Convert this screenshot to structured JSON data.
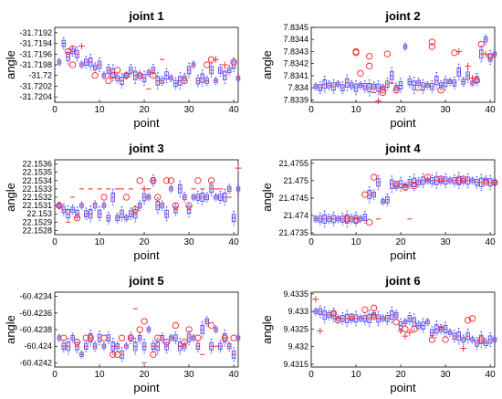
{
  "figure": {
    "color_box": "#4a4aff",
    "color_outlier": "#ff2020"
  },
  "chart_data": [
    {
      "type": "box",
      "title": "joint 1",
      "xlabel": "point",
      "ylabel": "angle",
      "xlim": [
        0,
        41
      ],
      "ylim": [
        -31.7205,
        -31.7191
      ],
      "x_ticks": [
        "0",
        "10",
        "20",
        "30",
        "40"
      ],
      "y_ticks": [
        "-31.7192",
        "-31.7194",
        "-31.7196",
        "-31.7198",
        "-31.72",
        "-31.7202",
        "-31.7204"
      ],
      "medians": [
        -31.71975,
        -31.7194,
        -31.71965,
        -31.71955,
        -31.7196,
        -31.7198,
        -31.71975,
        -31.71975,
        -31.71985,
        -31.7198,
        -31.72,
        -31.7199,
        -31.71995,
        -31.72005,
        -31.7201,
        -31.72,
        -31.7199,
        -31.72,
        -31.72,
        -31.72005,
        -31.71995,
        -31.7199,
        -31.7201,
        -31.7201,
        -31.72,
        -31.72005,
        -31.72015,
        -31.7201,
        -31.72005,
        -31.7199,
        -31.7198,
        -31.7201,
        -31.72005,
        -31.7201,
        -31.7199,
        -31.7201,
        -31.7199,
        -31.72,
        -31.7199,
        -31.7198,
        -31.72005
      ],
      "outliers": [
        {
          "x": 3,
          "y": -31.71955,
          "marker": "o"
        },
        {
          "x": 4,
          "y": -31.7195,
          "marker": "o"
        },
        {
          "x": 4,
          "y": -31.7198,
          "marker": "o"
        },
        {
          "x": 6,
          "y": -31.71945,
          "marker": "+"
        },
        {
          "x": 9,
          "y": -31.72,
          "marker": "o"
        },
        {
          "x": 12,
          "y": -31.7201,
          "marker": "o"
        },
        {
          "x": 13,
          "y": -31.72,
          "marker": "o"
        },
        {
          "x": 14,
          "y": -31.7199,
          "marker": "o"
        },
        {
          "x": 16,
          "y": -31.72,
          "marker": "o"
        },
        {
          "x": 19,
          "y": -31.72,
          "marker": "o"
        },
        {
          "x": 21,
          "y": -31.72025,
          "marker": "-"
        },
        {
          "x": 22,
          "y": -31.72,
          "marker": "o"
        },
        {
          "x": 24,
          "y": -31.7197,
          "marker": "-"
        },
        {
          "x": 29,
          "y": -31.7201,
          "marker": "o"
        },
        {
          "x": 34,
          "y": -31.7198,
          "marker": "o"
        },
        {
          "x": 35,
          "y": -31.7197,
          "marker": "o"
        },
        {
          "x": 36,
          "y": -31.7197,
          "marker": "+"
        },
        {
          "x": 38,
          "y": -31.7198,
          "marker": "+"
        },
        {
          "x": 40,
          "y": -31.71975,
          "marker": "o"
        }
      ]
    },
    {
      "type": "box",
      "title": "joint 2",
      "xlabel": "point",
      "ylabel": "angle",
      "xlim": [
        0,
        41
      ],
      "ylim": [
        7.83388,
        7.8345
      ],
      "x_ticks": [
        "0",
        "10",
        "20",
        "30",
        "40"
      ],
      "y_ticks": [
        "7.8345",
        "7.8344",
        "7.8343",
        "7.8342",
        "7.8341",
        "7.834",
        "7.8339"
      ],
      "medians": [
        7.83401,
        7.834,
        7.83403,
        7.83402,
        7.83401,
        7.83403,
        7.834,
        7.83404,
        7.83402,
        7.834,
        7.83402,
        7.83401,
        7.834,
        7.83401,
        7.834,
        7.834,
        7.83403,
        7.8341,
        7.834,
        7.83402,
        7.83434,
        7.83405,
        7.83402,
        7.83404,
        7.83401,
        7.83402,
        7.83401,
        7.83406,
        7.83402,
        7.83404,
        7.83405,
        7.83404,
        7.83413,
        7.83405,
        7.8341,
        7.83404,
        7.83407,
        7.83428,
        7.8344,
        7.83425,
        7.83428
      ],
      "outliers": [
        {
          "x": 10,
          "y": 7.8343,
          "marker": "o"
        },
        {
          "x": 10,
          "y": 7.83429,
          "marker": "o"
        },
        {
          "x": 11,
          "y": 7.83412,
          "marker": "o"
        },
        {
          "x": 13,
          "y": 7.83426,
          "marker": "o"
        },
        {
          "x": 13,
          "y": 7.83418,
          "marker": "o"
        },
        {
          "x": 14,
          "y": 7.83396,
          "marker": "-"
        },
        {
          "x": 15,
          "y": 7.83389,
          "marker": "+"
        },
        {
          "x": 16,
          "y": 7.83398,
          "marker": "o"
        },
        {
          "x": 16,
          "y": 7.83396,
          "marker": "o"
        },
        {
          "x": 17,
          "y": 7.83428,
          "marker": "o"
        },
        {
          "x": 18,
          "y": 7.83404,
          "marker": "-"
        },
        {
          "x": 19,
          "y": 7.83398,
          "marker": "o"
        },
        {
          "x": 24,
          "y": 7.83398,
          "marker": "-"
        },
        {
          "x": 27,
          "y": 7.83438,
          "marker": "o"
        },
        {
          "x": 27,
          "y": 7.83434,
          "marker": "o"
        },
        {
          "x": 29,
          "y": 7.83398,
          "marker": "o"
        },
        {
          "x": 32,
          "y": 7.83429,
          "marker": "o"
        },
        {
          "x": 33,
          "y": 7.8343,
          "marker": "+"
        },
        {
          "x": 35,
          "y": 7.83418,
          "marker": "+"
        },
        {
          "x": 36,
          "y": 7.83408,
          "marker": "+"
        },
        {
          "x": 37,
          "y": 7.83406,
          "marker": "o"
        },
        {
          "x": 38,
          "y": 7.83436,
          "marker": "o"
        },
        {
          "x": 39,
          "y": 7.83428,
          "marker": "+"
        },
        {
          "x": 40,
          "y": 7.83426,
          "marker": "o"
        }
      ]
    },
    {
      "type": "box",
      "title": "joint 3",
      "xlabel": "point",
      "ylabel": "angle",
      "xlim": [
        0,
        41
      ],
      "ylim": [
        22.15275,
        22.15365
      ],
      "x_ticks": [
        "0",
        "10",
        "20",
        "30",
        "40"
      ],
      "y_ticks": [
        "22.1536",
        "22.1535",
        "22.1534",
        "22.1533",
        "22.1532",
        "22.1531",
        "22.153",
        "22.1529",
        "22.1528"
      ],
      "medians": [
        22.1531,
        22.15305,
        22.153,
        22.15305,
        22.153,
        22.1531,
        22.153,
        22.153,
        22.1531,
        22.153,
        22.1531,
        22.15295,
        22.1532,
        22.15295,
        22.153,
        22.15295,
        22.153,
        22.153,
        22.1531,
        22.1532,
        22.1532,
        22.1534,
        22.1531,
        22.1531,
        22.153,
        22.1533,
        22.15305,
        22.1533,
        22.1532,
        22.15305,
        22.1532,
        22.1532,
        22.1532,
        22.1532,
        22.1533,
        22.1532,
        22.1532,
        22.1532,
        22.1533,
        22.15295,
        22.1533
      ],
      "outliers": [
        {
          "x": 1,
          "y": 22.1531,
          "marker": "o"
        },
        {
          "x": 3,
          "y": 22.1529,
          "marker": "-"
        },
        {
          "x": 4,
          "y": 22.1532,
          "marker": "-"
        },
        {
          "x": 5,
          "y": 22.15295,
          "marker": "o"
        },
        {
          "x": 6,
          "y": 22.1533,
          "marker": "-"
        },
        {
          "x": 8,
          "y": 22.1533,
          "marker": "-"
        },
        {
          "x": 10,
          "y": 22.1533,
          "marker": "-"
        },
        {
          "x": 11,
          "y": 22.1532,
          "marker": "o"
        },
        {
          "x": 12,
          "y": 22.1533,
          "marker": "-"
        },
        {
          "x": 14,
          "y": 22.1533,
          "marker": "-"
        },
        {
          "x": 15,
          "y": 22.1533,
          "marker": "-"
        },
        {
          "x": 16,
          "y": 22.1532,
          "marker": "o"
        },
        {
          "x": 17,
          "y": 22.1533,
          "marker": "-"
        },
        {
          "x": 18,
          "y": 22.15305,
          "marker": "o"
        },
        {
          "x": 19,
          "y": 22.1534,
          "marker": "o"
        },
        {
          "x": 20,
          "y": 22.1533,
          "marker": "+"
        },
        {
          "x": 21,
          "y": 22.1533,
          "marker": "-"
        },
        {
          "x": 22,
          "y": 22.1534,
          "marker": "o"
        },
        {
          "x": 23,
          "y": 22.1532,
          "marker": "o"
        },
        {
          "x": 25,
          "y": 22.1534,
          "marker": "o"
        },
        {
          "x": 26,
          "y": 22.1534,
          "marker": "o"
        },
        {
          "x": 27,
          "y": 22.1531,
          "marker": "o"
        },
        {
          "x": 29,
          "y": 22.1532,
          "marker": "-"
        },
        {
          "x": 30,
          "y": 22.1531,
          "marker": "o"
        },
        {
          "x": 31,
          "y": 22.1533,
          "marker": "-"
        },
        {
          "x": 32,
          "y": 22.1534,
          "marker": "o"
        },
        {
          "x": 33,
          "y": 22.1533,
          "marker": "-"
        },
        {
          "x": 35,
          "y": 22.1534,
          "marker": "o"
        },
        {
          "x": 36,
          "y": 22.1533,
          "marker": "-"
        },
        {
          "x": 37,
          "y": 22.1533,
          "marker": "-"
        },
        {
          "x": 39,
          "y": 22.1532,
          "marker": "-"
        },
        {
          "x": 41,
          "y": 22.15355,
          "marker": "+"
        }
      ]
    },
    {
      "type": "box",
      "title": "joint 4",
      "xlabel": "point",
      "ylabel": "angle",
      "xlim": [
        0,
        41
      ],
      "ylim": [
        21.47345,
        21.4756
      ],
      "x_ticks": [
        "0",
        "10",
        "20",
        "30",
        "40"
      ],
      "y_ticks": [
        "21.4755",
        "21.475",
        "21.4745",
        "21.474",
        "21.4735"
      ],
      "medians": [
        21.4739,
        21.4739,
        21.4739,
        21.4739,
        21.4739,
        21.4739,
        21.4739,
        21.4739,
        21.4739,
        21.4739,
        21.4739,
        21.47395,
        21.4746,
        21.4746,
        21.47495,
        21.4744,
        21.47445,
        21.4749,
        21.47485,
        21.4749,
        21.47485,
        21.47495,
        21.47495,
        21.47495,
        21.475,
        21.475,
        21.475,
        21.475,
        21.475,
        21.475,
        21.475,
        21.475,
        21.475,
        21.475,
        21.475,
        21.475,
        21.47495,
        21.47495,
        21.475,
        21.47495,
        21.47495
      ],
      "outliers": [
        {
          "x": 8,
          "y": 21.4739,
          "marker": "o"
        },
        {
          "x": 10,
          "y": 21.47385,
          "marker": "o"
        },
        {
          "x": 12,
          "y": 21.4746,
          "marker": "o"
        },
        {
          "x": 13,
          "y": 21.4738,
          "marker": "o"
        },
        {
          "x": 14,
          "y": 21.4751,
          "marker": "o"
        },
        {
          "x": 15,
          "y": 21.4739,
          "marker": "-"
        },
        {
          "x": 19,
          "y": 21.4749,
          "marker": "o"
        },
        {
          "x": 21,
          "y": 21.4748,
          "marker": "o"
        },
        {
          "x": 22,
          "y": 21.4739,
          "marker": "-"
        },
        {
          "x": 23,
          "y": 21.47485,
          "marker": "o"
        },
        {
          "x": 26,
          "y": 21.4751,
          "marker": "o"
        },
        {
          "x": 29,
          "y": 21.47505,
          "marker": "o"
        },
        {
          "x": 33,
          "y": 21.475,
          "marker": "o"
        },
        {
          "x": 34,
          "y": 21.47505,
          "marker": "o"
        },
        {
          "x": 39,
          "y": 21.47495,
          "marker": "o"
        },
        {
          "x": 41,
          "y": 21.47495,
          "marker": "o"
        }
      ]
    },
    {
      "type": "box",
      "title": "joint 5",
      "xlabel": "point",
      "ylabel": "angle",
      "xlim": [
        0,
        41
      ],
      "ylim": [
        -60.42425,
        -60.42335
      ],
      "x_ticks": [
        "0",
        "10",
        "20",
        "30",
        "40"
      ],
      "y_ticks": [
        "-60.4234",
        "-60.4236",
        "-60.4238",
        "-60.424",
        "-60.4242"
      ],
      "medians": [
        -60.4239,
        -60.424,
        -60.424,
        -60.4239,
        -60.424,
        -60.4241,
        -60.424,
        -60.4239,
        -60.424,
        -60.4239,
        -60.424,
        -60.4239,
        -60.424,
        -60.424,
        -60.4241,
        -60.424,
        -60.4239,
        -60.424,
        -60.4239,
        -60.424,
        -60.4238,
        -60.424,
        -60.424,
        -60.4239,
        -60.424,
        -60.4239,
        -60.4239,
        -60.424,
        -60.424,
        -60.4239,
        -60.4239,
        -60.424,
        -60.4238,
        -60.4237,
        -60.424,
        -60.4238,
        -60.424,
        -60.4239,
        -60.424,
        -60.4241,
        -60.4239
      ],
      "outliers": [
        {
          "x": 2,
          "y": -60.4239,
          "marker": "o"
        },
        {
          "x": 5,
          "y": -60.42395,
          "marker": "o"
        },
        {
          "x": 7,
          "y": -60.4239,
          "marker": "o"
        },
        {
          "x": 8,
          "y": -60.4239,
          "marker": "o"
        },
        {
          "x": 11,
          "y": -60.4239,
          "marker": "o"
        },
        {
          "x": 13,
          "y": -60.4241,
          "marker": "o"
        },
        {
          "x": 14,
          "y": -60.4241,
          "marker": "o"
        },
        {
          "x": 15,
          "y": -60.4239,
          "marker": "o"
        },
        {
          "x": 17,
          "y": -60.4239,
          "marker": "o"
        },
        {
          "x": 18,
          "y": -60.42355,
          "marker": "-"
        },
        {
          "x": 19,
          "y": -60.4238,
          "marker": "o"
        },
        {
          "x": 20,
          "y": -60.4237,
          "marker": "o"
        },
        {
          "x": 20,
          "y": -60.4242,
          "marker": "-"
        },
        {
          "x": 22,
          "y": -60.4241,
          "marker": "o"
        },
        {
          "x": 23,
          "y": -60.4239,
          "marker": "o"
        },
        {
          "x": 25,
          "y": -60.42395,
          "marker": "o"
        },
        {
          "x": 27,
          "y": -60.42375,
          "marker": "o"
        },
        {
          "x": 28,
          "y": -60.424,
          "marker": "-"
        },
        {
          "x": 29,
          "y": -60.42395,
          "marker": "o"
        },
        {
          "x": 30,
          "y": -60.4238,
          "marker": "o"
        },
        {
          "x": 32,
          "y": -60.4239,
          "marker": "o"
        },
        {
          "x": 33,
          "y": -60.4241,
          "marker": "-"
        },
        {
          "x": 35,
          "y": -60.42375,
          "marker": "o"
        },
        {
          "x": 36,
          "y": -60.424,
          "marker": "-"
        },
        {
          "x": 38,
          "y": -60.4239,
          "marker": "o"
        },
        {
          "x": 40,
          "y": -60.4239,
          "marker": "o"
        }
      ]
    },
    {
      "type": "box",
      "title": "joint 6",
      "xlabel": "point",
      "ylabel": "angle",
      "xlim": [
        0,
        41
      ],
      "ylim": [
        9.43142,
        9.43355
      ],
      "x_ticks": [
        "0",
        "10",
        "20",
        "30",
        "40"
      ],
      "y_ticks": [
        "9.4335",
        "9.433",
        "9.4325",
        "9.432",
        "9.4315"
      ],
      "medians": [
        9.433,
        9.433,
        9.4329,
        9.4329,
        9.4329,
        9.4328,
        9.4328,
        9.4328,
        9.4328,
        9.4328,
        9.4328,
        9.4328,
        9.4328,
        9.4329,
        9.4328,
        9.4328,
        9.4328,
        9.4329,
        9.4329,
        9.4326,
        9.4327,
        9.4328,
        9.4327,
        9.4326,
        9.4326,
        9.4327,
        9.4324,
        9.4325,
        9.4325,
        9.4325,
        9.4324,
        9.4323,
        9.4323,
        9.4322,
        9.4323,
        9.4322,
        9.4321,
        9.4322,
        9.4321,
        9.4322,
        9.4322
      ],
      "outliers": [
        {
          "x": 1,
          "y": 9.43335,
          "marker": "+"
        },
        {
          "x": 2,
          "y": 9.43245,
          "marker": "+"
        },
        {
          "x": 5,
          "y": 9.43295,
          "marker": "o"
        },
        {
          "x": 6,
          "y": 9.43275,
          "marker": "o"
        },
        {
          "x": 9,
          "y": 9.43285,
          "marker": "o"
        },
        {
          "x": 12,
          "y": 9.43305,
          "marker": "o"
        },
        {
          "x": 14,
          "y": 9.4331,
          "marker": "o"
        },
        {
          "x": 14,
          "y": 9.43285,
          "marker": "o"
        },
        {
          "x": 19,
          "y": 9.4327,
          "marker": "o"
        },
        {
          "x": 20,
          "y": 9.43245,
          "marker": "+"
        },
        {
          "x": 21,
          "y": 9.4325,
          "marker": "o"
        },
        {
          "x": 21,
          "y": 9.4323,
          "marker": "+"
        },
        {
          "x": 22,
          "y": 9.4324,
          "marker": "+"
        },
        {
          "x": 23,
          "y": 9.4325,
          "marker": "o"
        },
        {
          "x": 27,
          "y": 9.4322,
          "marker": "o"
        },
        {
          "x": 29,
          "y": 9.43255,
          "marker": "+"
        },
        {
          "x": 30,
          "y": 9.4322,
          "marker": "o"
        },
        {
          "x": 34,
          "y": 9.43195,
          "marker": "+"
        },
        {
          "x": 35,
          "y": 9.43275,
          "marker": "o"
        },
        {
          "x": 36,
          "y": 9.4328,
          "marker": "o"
        },
        {
          "x": 38,
          "y": 9.4322,
          "marker": "o"
        }
      ]
    }
  ]
}
